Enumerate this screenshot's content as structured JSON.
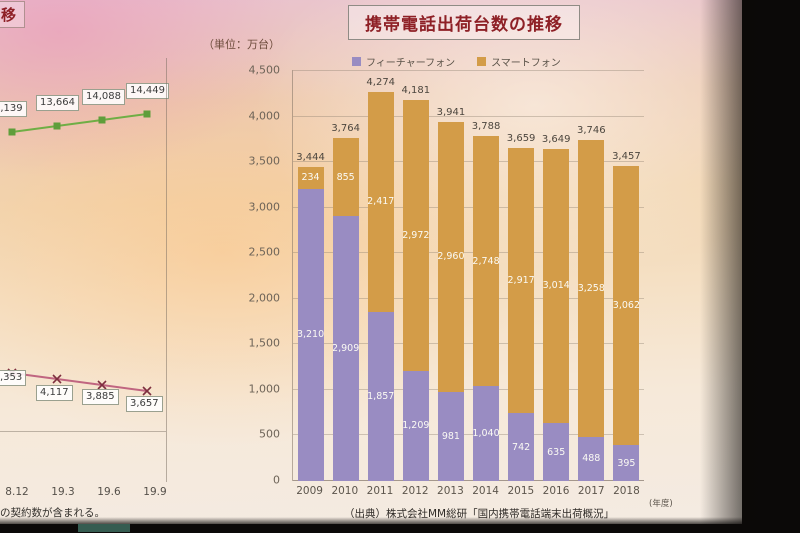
{
  "slide": {
    "left_chart": {
      "title_fragment": "移",
      "upper_labels": [
        "3,139",
        "13,664",
        "14,088",
        "14,449"
      ],
      "lower_labels": [
        ",353",
        "4,117",
        "3,885",
        "3,657"
      ],
      "x_labels": [
        "8.12",
        "19.3",
        "19.6",
        "19.9"
      ],
      "footnote": "の契約数が含まれる。"
    },
    "main_chart": {
      "title": "携帯電話出荷台数の推移",
      "unit_label": "（単位：万台）",
      "x_axis_unit": "(年度)",
      "source": "（出典）株式会社MM総研「国内携帯電話端末出荷概況」",
      "legend": [
        {
          "label": "フィーチャーフォン",
          "color": "#998cc2"
        },
        {
          "label": "スマートフォン",
          "color": "#d39c48"
        }
      ]
    }
  },
  "chart_data": {
    "type": "bar",
    "stacked": true,
    "title": "携帯電話出荷台数の推移",
    "unit": "万台",
    "categories": [
      "2009",
      "2010",
      "2011",
      "2012",
      "2013",
      "2014",
      "2015",
      "2016",
      "2017",
      "2018"
    ],
    "series": [
      {
        "name": "フィーチャーフォン",
        "color": "#998cc2",
        "values": [
          3210,
          2909,
          1857,
          1209,
          981,
          1040,
          742,
          635,
          488,
          395
        ]
      },
      {
        "name": "スマートフォン",
        "color": "#d39c48",
        "values": [
          234,
          855,
          2417,
          2972,
          2960,
          2748,
          2917,
          3014,
          3258,
          3062
        ]
      }
    ],
    "totals": [
      3444,
      3764,
      4274,
      4181,
      3941,
      3788,
      3659,
      3649,
      3746,
      3457
    ],
    "ylim": [
      0,
      4500
    ],
    "ytick_interval": 500,
    "ytick_labels": [
      "4,500",
      "4,000",
      "3,500",
      "3,000",
      "2,500",
      "2,000",
      "1,500",
      "1,000",
      "500",
      "0"
    ],
    "grid": true,
    "legend_position": "top",
    "x_axis_note": "(年度)"
  }
}
